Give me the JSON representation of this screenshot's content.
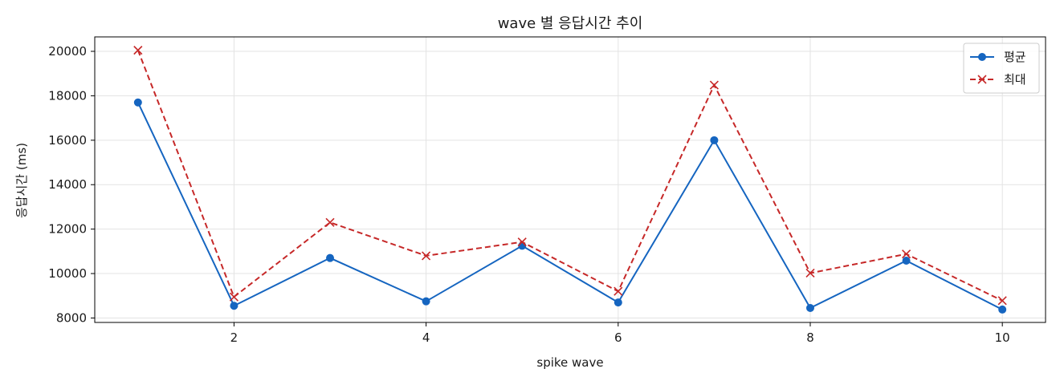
{
  "chart_data": {
    "type": "line",
    "title": "wave 별 응답시간 추이",
    "xlabel": "spike wave",
    "ylabel": "응답시간 (ms)",
    "x": [
      1,
      2,
      3,
      4,
      5,
      6,
      7,
      8,
      9,
      10
    ],
    "xlim": [
      0.55,
      10.45
    ],
    "ylim": [
      7800,
      20650
    ],
    "xticks": [
      2,
      4,
      6,
      8,
      10
    ],
    "yticks": [
      8000,
      10000,
      12000,
      14000,
      16000,
      18000,
      20000
    ],
    "grid": true,
    "legend_position": "top-right",
    "series": [
      {
        "name": "평균",
        "values": [
          17700,
          8550,
          10700,
          8750,
          11250,
          8700,
          16000,
          8450,
          10580,
          8380
        ],
        "color": "#1565c0",
        "marker": "circle",
        "line_style": "solid"
      },
      {
        "name": "최대",
        "values": [
          20050,
          8950,
          12300,
          10800,
          11420,
          9200,
          18480,
          10020,
          10880,
          8780
        ],
        "color": "#c62828",
        "marker": "x",
        "line_style": "dashed"
      }
    ]
  }
}
